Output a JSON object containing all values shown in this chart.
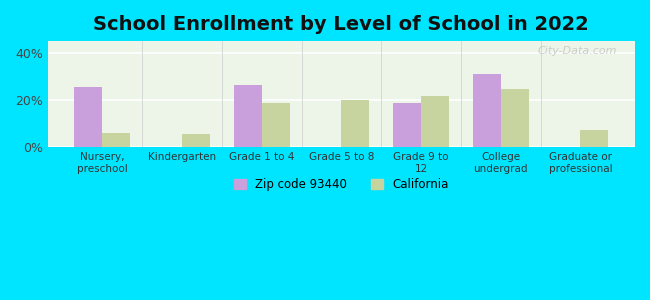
{
  "title": "School Enrollment by Level of School in 2022",
  "categories": [
    "Nursery,\npreschool",
    "Kindergarten",
    "Grade 1 to 4",
    "Grade 5 to 8",
    "Grade 9 to\n12",
    "College\nundergrad",
    "Graduate or\nprofessional"
  ],
  "zip_values": [
    25.5,
    0,
    26.5,
    0,
    18.5,
    31.0,
    0
  ],
  "ca_values": [
    6.0,
    5.5,
    18.5,
    20.0,
    21.5,
    24.5,
    7.0
  ],
  "zip_color": "#c9a0dc",
  "ca_color": "#c8d4a0",
  "background_outer": "#00e5ff",
  "background_inner": "#edf5e8",
  "ylim": [
    0,
    45
  ],
  "yticks": [
    0,
    20,
    40
  ],
  "ytick_labels": [
    "0%",
    "20%",
    "40%"
  ],
  "watermark": "City-Data.com",
  "legend_zip": "Zip code 93440",
  "legend_ca": "California",
  "title_fontsize": 14,
  "bar_width": 0.35
}
